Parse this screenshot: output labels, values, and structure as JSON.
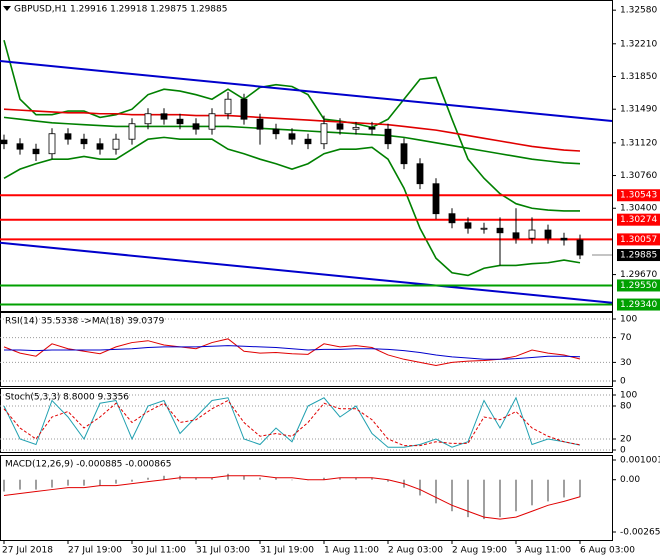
{
  "chart_data": [
    {
      "type": "candlestick",
      "title": "GBPUSD,H1  1.29916 1.29918 1.29875 1.29885",
      "categories": [
        "27 Jul 2018",
        null,
        null,
        null,
        "27 Jul 19:00",
        null,
        null,
        null,
        "30 Jul 11:00",
        null,
        null,
        null,
        "31 Jul 03:00",
        null,
        null,
        null,
        "31 Jul 19:00",
        null,
        null,
        null,
        "1 Aug 11:00",
        null,
        null,
        null,
        "2 Aug 03:00",
        null,
        null,
        null,
        "2 Aug 19:00",
        null,
        null,
        null,
        "3 Aug 11:00",
        null,
        null,
        null,
        "6 Aug 03:00"
      ],
      "open": [
        1.3115,
        1.3111,
        1.3105,
        1.31,
        1.3122,
        1.3116,
        1.3111,
        1.3105,
        1.3116,
        1.3133,
        1.3144,
        1.3138,
        1.3133,
        1.3127,
        1.3144,
        1.316,
        1.3138,
        1.3127,
        1.3122,
        1.3116,
        1.3111,
        1.3133,
        1.3127,
        1.3129,
        1.3127,
        1.3111,
        1.3089,
        1.3067,
        1.3034,
        1.3024,
        1.3018,
        1.3018,
        1.3013,
        1.3007,
        1.3016,
        1.3007,
        1.3005
      ],
      "high": [
        1.3121,
        1.3117,
        1.3111,
        1.3128,
        1.3128,
        1.3122,
        1.3117,
        1.3122,
        1.3139,
        1.315,
        1.315,
        1.3144,
        1.3139,
        1.315,
        1.3168,
        1.3166,
        1.3144,
        1.3133,
        1.3128,
        1.3122,
        1.3142,
        1.3139,
        1.3135,
        1.3135,
        1.3133,
        1.3117,
        1.3095,
        1.3073,
        1.304,
        1.303,
        1.3024,
        1.303,
        1.304,
        1.303,
        1.3022,
        1.3013,
        1.3011
      ],
      "low": [
        1.3105,
        1.3099,
        1.3092,
        1.3094,
        1.311,
        1.3105,
        1.3099,
        1.3099,
        1.311,
        1.3127,
        1.3132,
        1.3127,
        1.3121,
        1.3121,
        1.3138,
        1.3132,
        1.311,
        1.3116,
        1.311,
        1.3105,
        1.3105,
        1.3121,
        1.3121,
        1.3121,
        1.3105,
        1.3083,
        1.3061,
        1.3028,
        1.3018,
        1.3012,
        1.3012,
        1.2977,
        1.3001,
        1.3001,
        1.3001,
        1.2999,
        1.2984
      ],
      "close": [
        1.3111,
        1.3105,
        1.31,
        1.3122,
        1.3116,
        1.3111,
        1.3105,
        1.3116,
        1.3133,
        1.3144,
        1.3138,
        1.3133,
        1.3127,
        1.3144,
        1.316,
        1.3138,
        1.3127,
        1.3122,
        1.3116,
        1.3111,
        1.3133,
        1.3127,
        1.3129,
        1.3127,
        1.3111,
        1.3089,
        1.3067,
        1.3034,
        1.3024,
        1.3018,
        1.3018,
        1.3013,
        1.3007,
        1.3016,
        1.3007,
        1.3005,
        1.29885
      ],
      "ylim": [
        1.2928,
        1.3267
      ],
      "yticks": [
        {
          "value": 1.3258,
          "label": "1.32580"
        },
        {
          "value": 1.3221,
          "label": "1.32210"
        },
        {
          "value": 1.3185,
          "label": "1.31850"
        },
        {
          "value": 1.3149,
          "label": "1.31490"
        },
        {
          "value": 1.3112,
          "label": "1.31120"
        },
        {
          "value": 1.3076,
          "label": "1.30760"
        },
        {
          "value": 1.304,
          "label": "1.30400"
        },
        {
          "value": 1.2967,
          "label": "1.29670"
        }
      ],
      "overlays": [
        {
          "color": "#008000",
          "values": [
            1.3225,
            1.316,
            1.3143,
            1.3143,
            1.3147,
            1.3147,
            1.314,
            1.3143,
            1.3149,
            1.3165,
            1.3171,
            1.3169,
            1.3165,
            1.316,
            1.3171,
            1.316,
            1.3173,
            1.3176,
            1.3174,
            1.3165,
            1.3138,
            1.3136,
            1.3133,
            1.3129,
            1.3138,
            1.316,
            1.3182,
            1.3184,
            1.3138,
            1.3094,
            1.3073,
            1.3056,
            1.3045,
            1.304,
            1.3038,
            1.3037,
            1.3037
          ]
        },
        {
          "color": "#008000",
          "values": [
            1.3073,
            1.3083,
            1.3089,
            1.3094,
            1.3094,
            1.3097,
            1.3094,
            1.3094,
            1.3105,
            1.3116,
            1.3118,
            1.3116,
            1.3116,
            1.3116,
            1.3105,
            1.31,
            1.3094,
            1.3089,
            1.3083,
            1.3089,
            1.31,
            1.3105,
            1.3105,
            1.3107,
            1.3094,
            1.3062,
            1.3018,
            1.2985,
            1.2969,
            1.2966,
            1.2974,
            1.2977,
            1.2977,
            1.2979,
            1.298,
            1.2983,
            1.298
          ]
        },
        {
          "color": "#008000",
          "values": [
            1.314,
            1.3138,
            1.3136,
            1.3134,
            1.3133,
            1.3132,
            1.3131,
            1.313,
            1.313,
            1.313,
            1.313,
            1.313,
            1.313,
            1.313,
            1.313,
            1.3129,
            1.3128,
            1.3127,
            1.3126,
            1.3125,
            1.3124,
            1.3123,
            1.3122,
            1.3121,
            1.312,
            1.3118,
            1.3115,
            1.3112,
            1.3109,
            1.3106,
            1.3103,
            1.31,
            1.3097,
            1.3094,
            1.3092,
            1.309,
            1.3089
          ]
        },
        {
          "color": "#e00000",
          "values": [
            1.3149,
            1.3148,
            1.3147,
            1.3146,
            1.3145,
            1.3145,
            1.3144,
            1.3144,
            1.3143,
            1.3143,
            1.3143,
            1.3143,
            1.3142,
            1.3142,
            1.3142,
            1.3141,
            1.314,
            1.3139,
            1.3138,
            1.3137,
            1.3136,
            1.3135,
            1.3134,
            1.3133,
            1.3132,
            1.313,
            1.3128,
            1.3126,
            1.3123,
            1.312,
            1.3117,
            1.3114,
            1.3111,
            1.3108,
            1.3106,
            1.3104,
            1.3103
          ]
        }
      ],
      "trendlines": [
        {
          "color": "#0000cc",
          "values": [
            1.3202,
            1.3136
          ]
        },
        {
          "color": "#0000cc",
          "values": [
            1.3002,
            1.2936
          ]
        }
      ],
      "levels": [
        {
          "value": 1.30543,
          "color": "#ff0000"
        },
        {
          "value": 1.30274,
          "color": "#ff0000"
        },
        {
          "value": 1.30057,
          "color": "#ff0000"
        },
        {
          "value": 1.2955,
          "label": "1.29550",
          "color": "#00a000"
        },
        {
          "value": 1.2934,
          "label": "1.29340",
          "color": "#00a000"
        }
      ],
      "last_price": 1.29885
    },
    {
      "type": "line",
      "title": "RSI(14) 35.5338 ->MA(18) 39.0379",
      "ylim": [
        0,
        100
      ],
      "yticks": [
        0,
        30,
        70,
        100
      ],
      "grid": true,
      "series": [
        {
          "color": "#e00000",
          "values": [
            55,
            45,
            40,
            60,
            52,
            48,
            44,
            55,
            62,
            65,
            58,
            55,
            52,
            62,
            68,
            48,
            45,
            46,
            44,
            43,
            60,
            55,
            57,
            54,
            42,
            35,
            30,
            25,
            30,
            32,
            33,
            35,
            40,
            50,
            45,
            42,
            35.5338
          ]
        },
        {
          "color": "#0000cc",
          "values": [
            50,
            50,
            49,
            50,
            50,
            50,
            50,
            51,
            52,
            54,
            55,
            55,
            55,
            56,
            57,
            56,
            55,
            54,
            52,
            50,
            51,
            51,
            52,
            52,
            51,
            49,
            46,
            42,
            39,
            37,
            35,
            35,
            36,
            38,
            40,
            40,
            39.0379
          ]
        }
      ]
    },
    {
      "type": "line",
      "title": "Stoch(5,3,3) 8.8000 9.3356",
      "ylim": [
        0,
        100
      ],
      "yticks": [
        0,
        20,
        80,
        100
      ],
      "grid": true,
      "series": [
        {
          "color": "#20a0b0",
          "values": [
            80,
            20,
            10,
            90,
            60,
            20,
            85,
            90,
            20,
            80,
            90,
            30,
            60,
            90,
            95,
            20,
            10,
            40,
            15,
            80,
            95,
            60,
            80,
            30,
            5,
            5,
            10,
            20,
            5,
            15,
            90,
            40,
            95,
            10,
            20,
            15,
            8.8
          ]
        },
        {
          "color": "#e00000",
          "dash": true,
          "values": [
            75,
            40,
            20,
            60,
            70,
            40,
            60,
            85,
            50,
            70,
            85,
            50,
            55,
            75,
            90,
            50,
            25,
            30,
            25,
            50,
            85,
            75,
            75,
            55,
            20,
            8,
            8,
            15,
            12,
            12,
            60,
            55,
            70,
            40,
            25,
            15,
            9.3356
          ]
        }
      ]
    },
    {
      "type": "macd",
      "title": "MACD(12,26,9) -0.000885 -0.000865",
      "ylim": [
        -0.002655,
        0.001001
      ],
      "yticks": [
        0.001001,
        {
          "value": 0,
          "label": "0.00"
        },
        -0.002655
      ],
      "histogram": {
        "color": "#a0a0a0",
        "values": [
          -0.0006,
          -0.0005,
          -0.0005,
          -0.0004,
          -0.0003,
          -0.0003,
          -0.0003,
          -0.0002,
          -0.0001,
          0.0001,
          0.0002,
          0.0002,
          0.0001,
          0.0001,
          0.0003,
          0.0002,
          0.0001,
          0.0001,
          0,
          0,
          0.0001,
          0.0001,
          0.0001,
          0.0001,
          -0.0001,
          -0.0004,
          -0.0008,
          -0.0012,
          -0.0016,
          -0.0019,
          -0.002,
          -0.0019,
          -0.0016,
          -0.0013,
          -0.0011,
          -0.0009,
          -0.000885
        ]
      },
      "series": [
        {
          "color": "#e00000",
          "values": [
            -0.0008,
            -0.0007,
            -0.0006,
            -0.0005,
            -0.0004,
            -0.0004,
            -0.0003,
            -0.0003,
            -0.0002,
            -0.0001,
            0,
            0.0001,
            0.0001,
            0.0001,
            0.0002,
            0.0002,
            0.0002,
            0.0001,
            0.0001,
            0,
            0,
            0.0001,
            0.0001,
            0.0001,
            0,
            -0.0002,
            -0.0005,
            -0.0009,
            -0.0013,
            -0.0016,
            -0.0019,
            -0.002,
            -0.0019,
            -0.0016,
            -0.0013,
            -0.0011,
            -0.000865
          ]
        }
      ]
    }
  ]
}
